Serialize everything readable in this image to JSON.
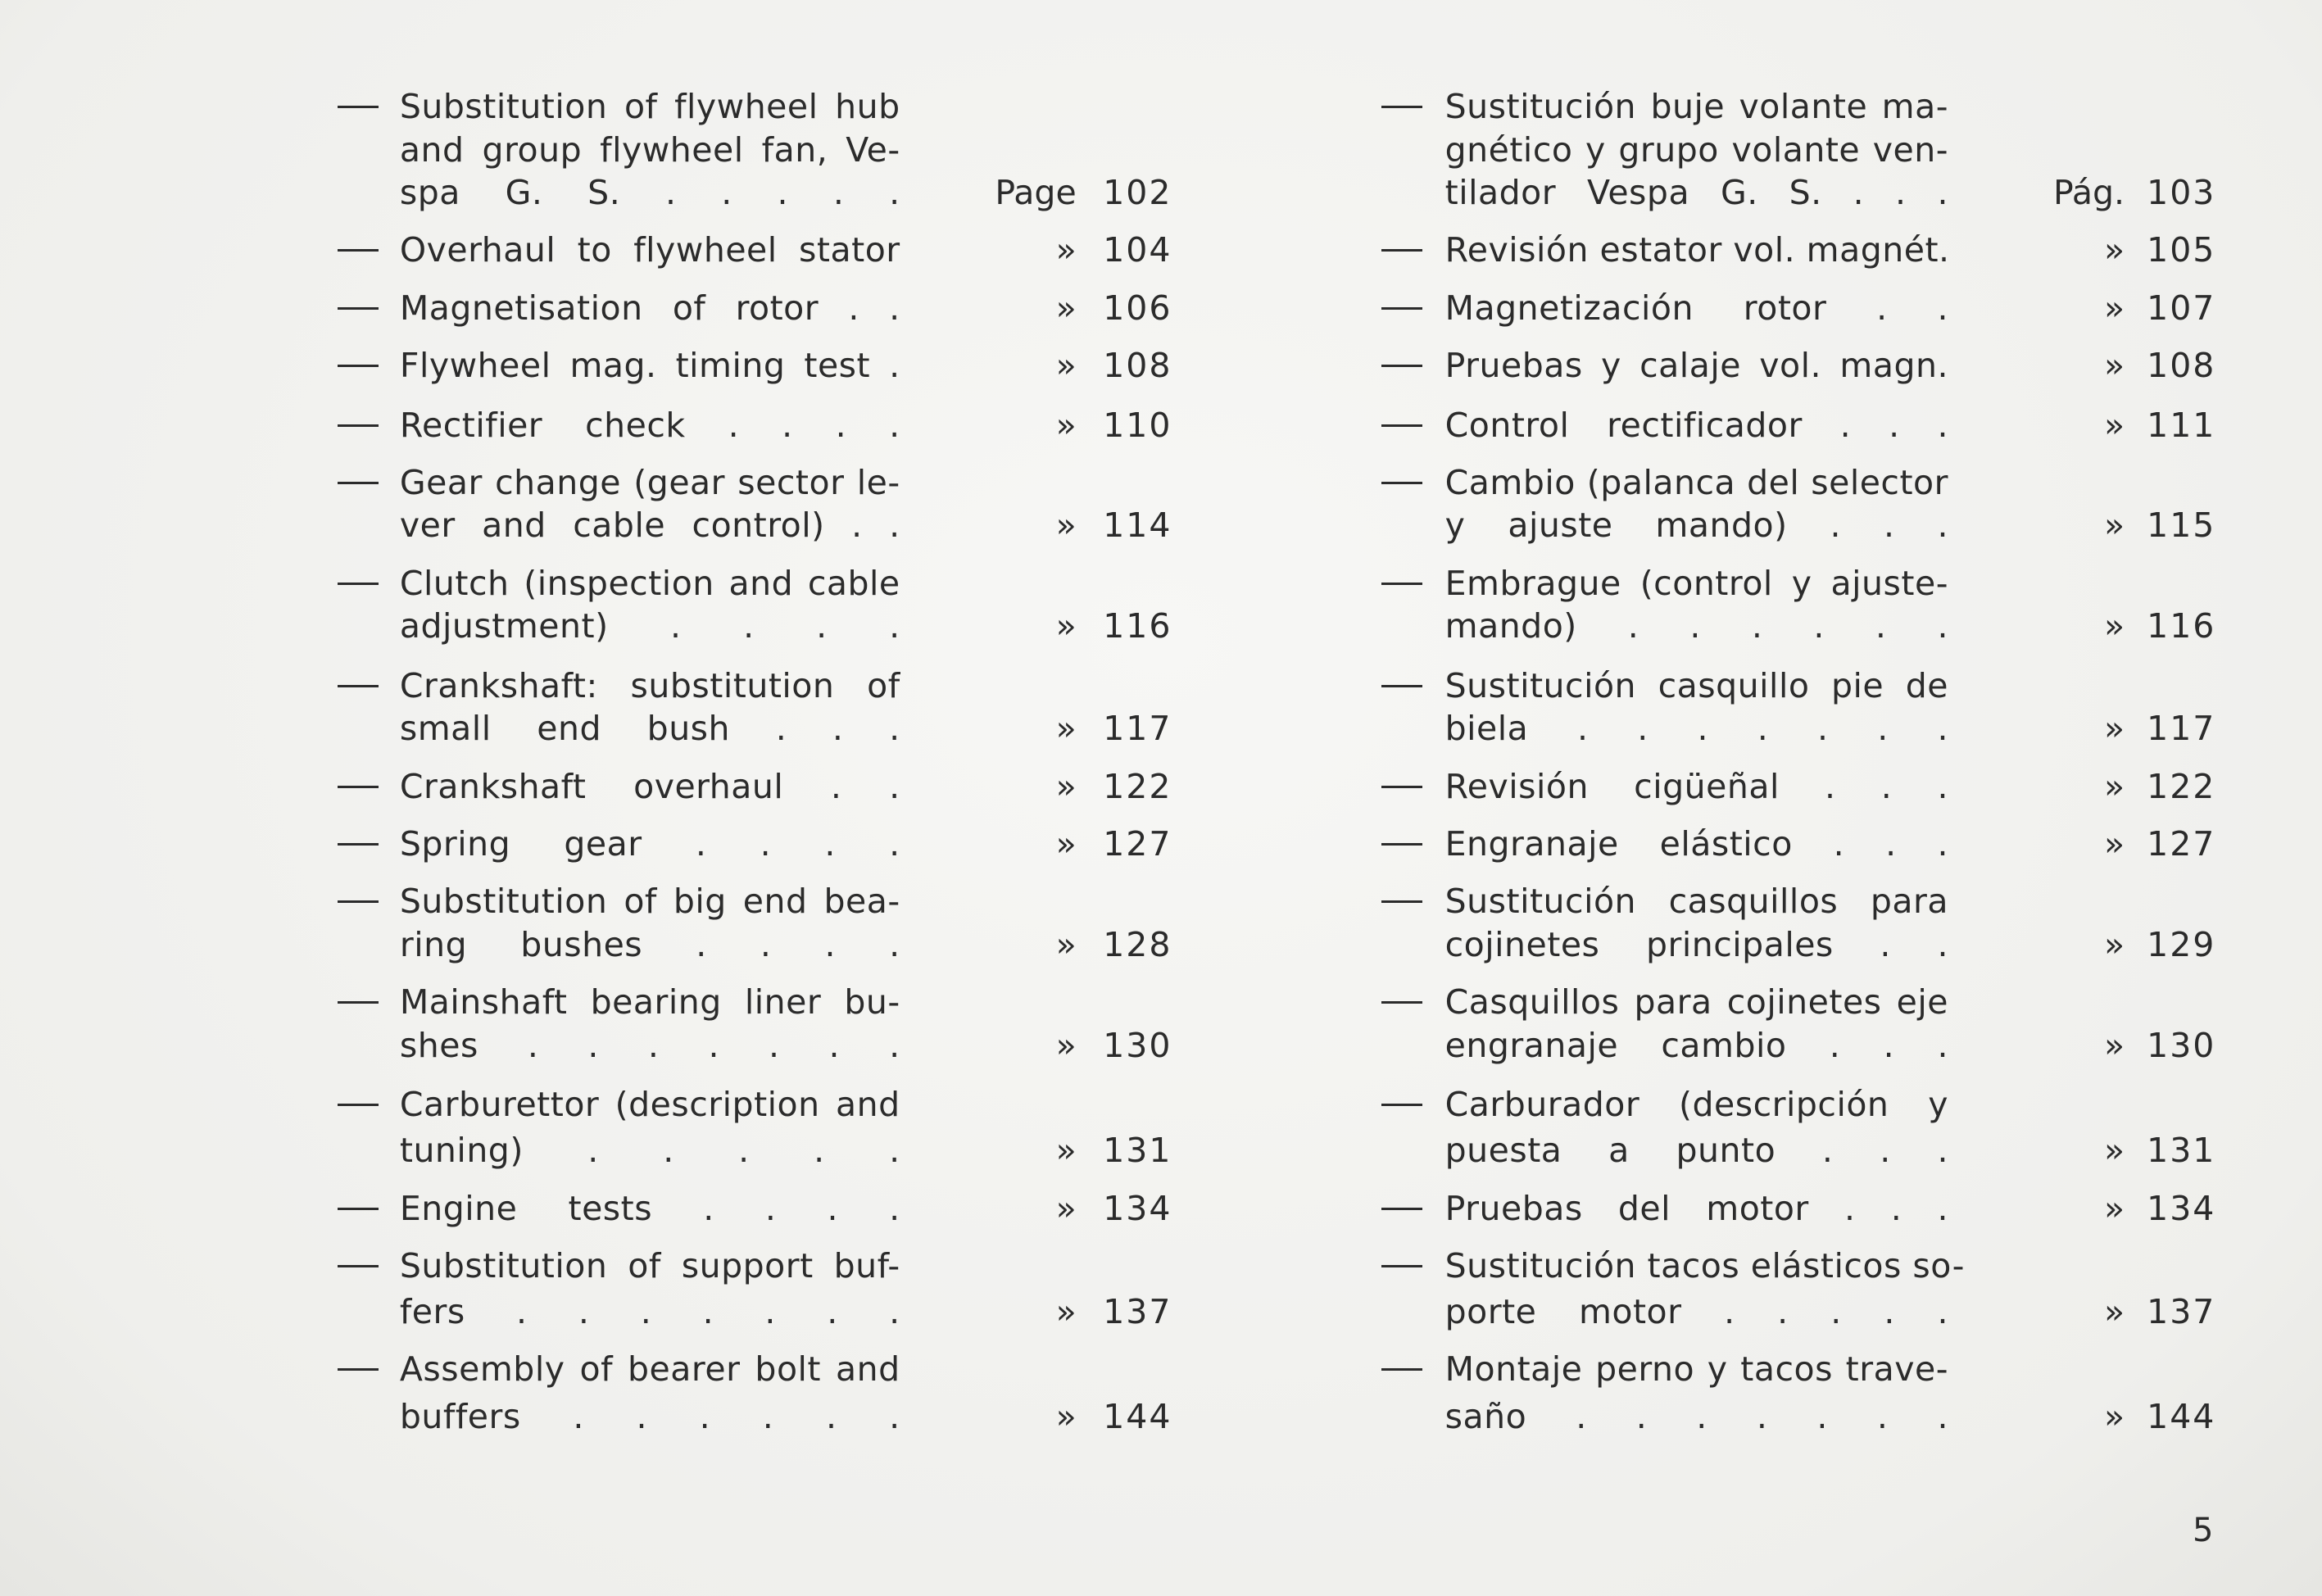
{
  "left_column": {
    "entries": [
      {
        "lines": [
          "Substitution of flywheel hub",
          "and group flywheel fan, Ve-",
          "spa G. S. . . . . ."
        ],
        "marker": "Page",
        "page": "102"
      },
      {
        "lines": [
          "Overhaul to flywheel stator"
        ],
        "marker": "»",
        "page": "104"
      },
      {
        "lines": [
          "Magnetisation of rotor . ."
        ],
        "marker": "»",
        "page": "106"
      },
      {
        "lines": [
          "Flywheel mag. timing test ."
        ],
        "marker": "»",
        "page": "108"
      },
      {
        "lines": [
          "Rectifier check . . . ."
        ],
        "marker": "»",
        "page": "110"
      },
      {
        "lines": [
          "Gear change (gear sector le-",
          "ver and cable control) . ."
        ],
        "marker": "»",
        "page": "114"
      },
      {
        "lines": [
          "Clutch (inspection and cable",
          "adjustment) . . . ."
        ],
        "marker": "»",
        "page": "116"
      },
      {
        "lines": [
          "Crankshaft: substitution of",
          "small end bush . . ."
        ],
        "marker": "»",
        "page": "117"
      },
      {
        "lines": [
          "Crankshaft overhaul . ."
        ],
        "marker": "»",
        "page": "122"
      },
      {
        "lines": [
          "Spring gear . . . ."
        ],
        "marker": "»",
        "page": "127"
      },
      {
        "lines": [
          "Substitution of big end bea-",
          "ring bushes . . . ."
        ],
        "marker": "»",
        "page": "128"
      },
      {
        "lines": [
          "Mainshaft bearing liner bu-",
          "shes . . . . . . ."
        ],
        "marker": "»",
        "page": "130"
      },
      {
        "lines": [
          "Carburettor (description and",
          "tuning) . . . . ."
        ],
        "marker": "»",
        "page": "131"
      },
      {
        "lines": [
          "Engine tests . . . ."
        ],
        "marker": "»",
        "page": "134"
      },
      {
        "lines": [
          "Substitution of support buf-",
          "fers . . . . . . ."
        ],
        "marker": "»",
        "page": "137"
      },
      {
        "lines": [
          "Assembly of bearer bolt and",
          "buffers . . . . . ."
        ],
        "marker": "»",
        "page": "144"
      }
    ]
  },
  "right_column": {
    "entries": [
      {
        "lines": [
          "Sustitución buje volante ma-",
          "gnético y grupo volante ven-",
          "tilador Vespa G. S. . . ."
        ],
        "marker": "Pág.",
        "page": "103"
      },
      {
        "lines": [
          "Revisión estator vol. magnét."
        ],
        "marker": "»",
        "page": "105"
      },
      {
        "lines": [
          "Magnetización rotor . ."
        ],
        "marker": "»",
        "page": "107"
      },
      {
        "lines": [
          "Pruebas y calaje vol. magn."
        ],
        "marker": "»",
        "page": "108"
      },
      {
        "lines": [
          "Control rectificador . . ."
        ],
        "marker": "»",
        "page": "111"
      },
      {
        "lines": [
          "Cambio (palanca del selector",
          "y ajuste mando) . . ."
        ],
        "marker": "»",
        "page": "115"
      },
      {
        "lines": [
          "Embrague (control y ajuste-",
          "mando) . . . . . ."
        ],
        "marker": "»",
        "page": "116"
      },
      {
        "lines": [
          "Sustitución casquillo pie de",
          "biela . . . . . . ."
        ],
        "marker": "»",
        "page": "117"
      },
      {
        "lines": [
          "Revisión cigüeñal . . ."
        ],
        "marker": "»",
        "page": "122"
      },
      {
        "lines": [
          "Engranaje elástico . . ."
        ],
        "marker": "»",
        "page": "127"
      },
      {
        "lines": [
          "Sustitución casquillos para",
          "cojinetes principales . ."
        ],
        "marker": "»",
        "page": "129"
      },
      {
        "lines": [
          "Casquillos para cojinetes eje",
          "engranaje cambio . . ."
        ],
        "marker": "»",
        "page": "130"
      },
      {
        "lines": [
          "Carburador (descripción y",
          "puesta a punto . . ."
        ],
        "marker": "»",
        "page": "131"
      },
      {
        "lines": [
          "Pruebas del motor . . ."
        ],
        "marker": "»",
        "page": "134"
      },
      {
        "lines": [
          "Sustitución tacos elásticos so-",
          "porte motor . . . . ."
        ],
        "marker": "»",
        "page": "137"
      },
      {
        "lines": [
          "Montaje perno y tacos trave-",
          "saño . . . . . . ."
        ],
        "marker": "»",
        "page": "144"
      }
    ]
  },
  "page_number": "5"
}
